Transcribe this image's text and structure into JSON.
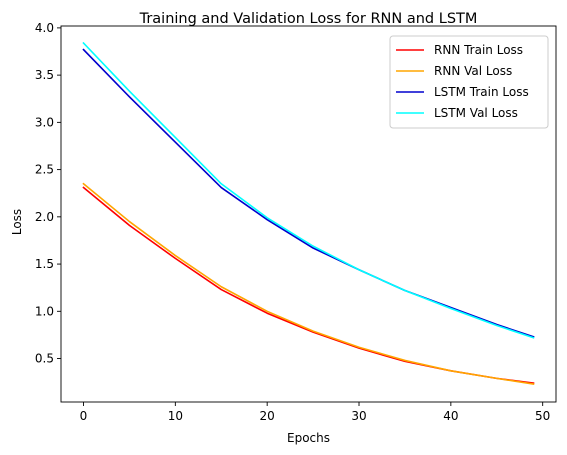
{
  "chart_data": {
    "type": "line",
    "title": "Training and Validation Loss for RNN and LSTM",
    "xlabel": "Epochs",
    "ylabel": "Loss",
    "xlim": [
      -2.45,
      51.45
    ],
    "ylim": [
      0.04,
      4.02
    ],
    "xticks": [
      0,
      10,
      20,
      30,
      40,
      50
    ],
    "yticks": [
      0.5,
      1.0,
      1.5,
      2.0,
      2.5,
      3.0,
      3.5,
      4.0
    ],
    "ytick_labels": [
      "0.5",
      "1.0",
      "1.5",
      "2.0",
      "2.5",
      "3.0",
      "3.5",
      "4.0"
    ],
    "grid": false,
    "legend_position": "top-right",
    "x": [
      0,
      5,
      10,
      15,
      20,
      25,
      30,
      35,
      40,
      45,
      49
    ],
    "series": [
      {
        "name": "RNN Train Loss",
        "color": "#ff0000",
        "values": [
          2.31,
          1.91,
          1.56,
          1.23,
          0.98,
          0.78,
          0.61,
          0.47,
          0.37,
          0.29,
          0.24
        ]
      },
      {
        "name": "RNN Val Loss",
        "color": "#ffa500",
        "values": [
          2.35,
          1.95,
          1.59,
          1.26,
          1.0,
          0.79,
          0.62,
          0.48,
          0.37,
          0.29,
          0.23
        ]
      },
      {
        "name": "LSTM Train Loss",
        "color": "#0000cd",
        "values": [
          3.77,
          3.27,
          2.79,
          2.31,
          1.97,
          1.67,
          1.44,
          1.22,
          1.04,
          0.86,
          0.73
        ]
      },
      {
        "name": "LSTM Val Loss",
        "color": "#00ffff",
        "values": [
          3.84,
          3.33,
          2.84,
          2.35,
          1.99,
          1.69,
          1.44,
          1.22,
          1.03,
          0.85,
          0.72
        ]
      }
    ]
  }
}
